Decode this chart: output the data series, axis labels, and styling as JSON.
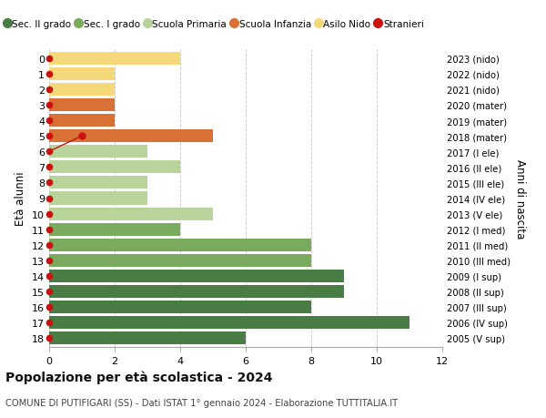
{
  "ages": [
    18,
    17,
    16,
    15,
    14,
    13,
    12,
    11,
    10,
    9,
    8,
    7,
    6,
    5,
    4,
    3,
    2,
    1,
    0
  ],
  "right_labels": [
    "2005 (V sup)",
    "2006 (IV sup)",
    "2007 (III sup)",
    "2008 (II sup)",
    "2009 (I sup)",
    "2010 (III med)",
    "2011 (II med)",
    "2012 (I med)",
    "2013 (V ele)",
    "2014 (IV ele)",
    "2015 (III ele)",
    "2016 (II ele)",
    "2017 (I ele)",
    "2018 (mater)",
    "2019 (mater)",
    "2020 (mater)",
    "2021 (nido)",
    "2022 (nido)",
    "2023 (nido)"
  ],
  "values": [
    6,
    11,
    8,
    9,
    9,
    8,
    8,
    4,
    5,
    3,
    3,
    4,
    3,
    5,
    2,
    2,
    2,
    2,
    4
  ],
  "colors": [
    "#4a7c45",
    "#4a7c45",
    "#4a7c45",
    "#4a7c45",
    "#4a7c45",
    "#7aaa5e",
    "#7aaa5e",
    "#7aaa5e",
    "#b8d49a",
    "#b8d49a",
    "#b8d49a",
    "#b8d49a",
    "#b8d49a",
    "#d97136",
    "#d97136",
    "#d97136",
    "#f5d87a",
    "#f5d87a",
    "#f5d87a"
  ],
  "stranieri_values": [
    0,
    0,
    0,
    0,
    0,
    0,
    0,
    0,
    0,
    0,
    0,
    0,
    0,
    1,
    0,
    0,
    0,
    0,
    0
  ],
  "stranieri_color": "#cc1111",
  "legend_labels": [
    "Sec. II grado",
    "Sec. I grado",
    "Scuola Primaria",
    "Scuola Infanzia",
    "Asilo Nido",
    "Stranieri"
  ],
  "legend_colors": [
    "#4a7c45",
    "#7aaa5e",
    "#b8d49a",
    "#d97136",
    "#f5d87a",
    "#cc1111"
  ],
  "title": "Popolazione per età scolastica - 2024",
  "subtitle": "COMUNE DI PUTIFIGARI (SS) - Dati ISTAT 1° gennaio 2024 - Elaborazione TUTTITALIA.IT",
  "ylabel_left": "Età alunni",
  "ylabel_right": "Anni di nascita",
  "xlim": [
    0,
    12
  ],
  "xticks": [
    0,
    2,
    4,
    6,
    8,
    10,
    12
  ],
  "background_color": "#ffffff",
  "grid_color": "#cccccc",
  "bar_height": 0.82
}
